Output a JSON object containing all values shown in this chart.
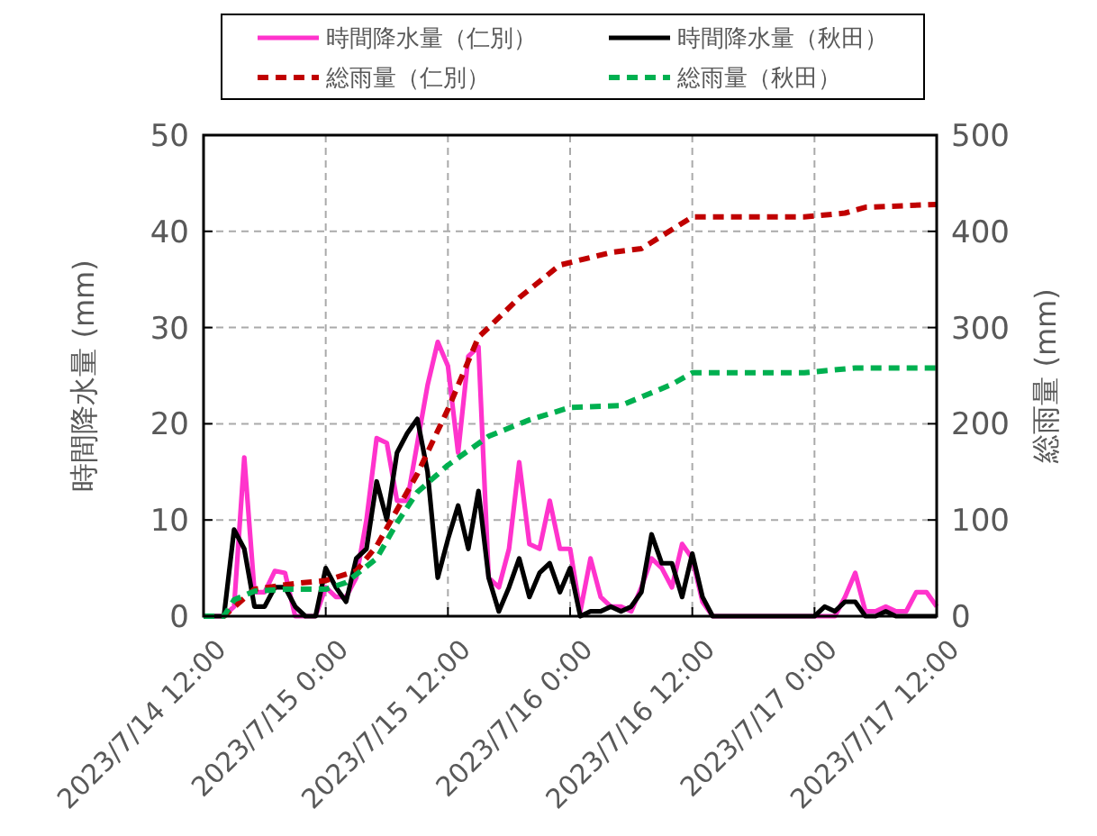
{
  "chart_data": {
    "type": "line",
    "ylabel": "時間降水量 (mm)",
    "y2label": "総雨量 (mm)",
    "x": [
      "2023-07-14T12:00",
      "2023-07-14T13:00",
      "2023-07-14T14:00",
      "2023-07-14T15:00",
      "2023-07-14T16:00",
      "2023-07-14T17:00",
      "2023-07-14T18:00",
      "2023-07-14T19:00",
      "2023-07-14T20:00",
      "2023-07-14T21:00",
      "2023-07-14T22:00",
      "2023-07-14T23:00",
      "2023-07-15T00:00",
      "2023-07-15T01:00",
      "2023-07-15T02:00",
      "2023-07-15T03:00",
      "2023-07-15T04:00",
      "2023-07-15T05:00",
      "2023-07-15T06:00",
      "2023-07-15T07:00",
      "2023-07-15T08:00",
      "2023-07-15T09:00",
      "2023-07-15T10:00",
      "2023-07-15T11:00",
      "2023-07-15T12:00",
      "2023-07-15T13:00",
      "2023-07-15T14:00",
      "2023-07-15T15:00",
      "2023-07-15T16:00",
      "2023-07-15T17:00",
      "2023-07-15T18:00",
      "2023-07-15T19:00",
      "2023-07-15T20:00",
      "2023-07-15T21:00",
      "2023-07-15T22:00",
      "2023-07-15T23:00",
      "2023-07-16T00:00",
      "2023-07-16T01:00",
      "2023-07-16T02:00",
      "2023-07-16T03:00",
      "2023-07-16T04:00",
      "2023-07-16T05:00",
      "2023-07-16T06:00",
      "2023-07-16T07:00",
      "2023-07-16T08:00",
      "2023-07-16T09:00",
      "2023-07-16T10:00",
      "2023-07-16T11:00",
      "2023-07-16T12:00",
      "2023-07-16T13:00",
      "2023-07-16T14:00",
      "2023-07-16T15:00",
      "2023-07-16T16:00",
      "2023-07-16T17:00",
      "2023-07-16T18:00",
      "2023-07-16T19:00",
      "2023-07-16T20:00",
      "2023-07-16T21:00",
      "2023-07-16T22:00",
      "2023-07-16T23:00",
      "2023-07-17T00:00",
      "2023-07-17T01:00",
      "2023-07-17T02:00",
      "2023-07-17T03:00",
      "2023-07-17T04:00",
      "2023-07-17T05:00",
      "2023-07-17T06:00",
      "2023-07-17T07:00",
      "2023-07-17T08:00",
      "2023-07-17T09:00",
      "2023-07-17T10:00",
      "2023-07-17T11:00",
      "2023-07-17T12:00"
    ],
    "series": [
      {
        "name": "時間降水量（仁別）",
        "color": "#ff33cc",
        "line_style": "solid",
        "values": [
          0,
          0,
          0,
          1,
          16.5,
          2.5,
          2.5,
          4.7,
          4.5,
          0,
          0,
          0,
          3,
          2,
          2,
          4,
          10,
          18.5,
          18,
          12,
          12,
          18,
          24,
          28.5,
          26,
          17,
          27,
          28,
          4,
          3,
          7,
          16,
          7.5,
          7,
          12,
          7,
          7,
          0.5,
          6,
          2,
          1,
          1,
          0.5,
          3,
          6,
          5,
          3,
          7.5,
          6,
          1.5,
          0,
          0,
          0,
          0,
          0,
          0,
          0,
          0,
          0,
          0,
          0,
          0,
          0,
          2,
          4.5,
          0.5,
          0.5,
          1,
          0.5,
          0.5,
          2.5,
          2.5,
          1
        ]
      },
      {
        "name": "時間降水量（秋田）",
        "color": "#000000",
        "line_style": "solid",
        "values": [
          0,
          0,
          0,
          9,
          7,
          1,
          1,
          3,
          3,
          1,
          0,
          0,
          5,
          3,
          1.5,
          6,
          7,
          14,
          10,
          17,
          19,
          20.5,
          15,
          4,
          8,
          11.5,
          7,
          13,
          4,
          0.5,
          3,
          6,
          2,
          4.5,
          5.5,
          2.5,
          5,
          0,
          0.5,
          0.5,
          1,
          0.5,
          1,
          2.5,
          8.5,
          5.5,
          5.5,
          2,
          6.5,
          2,
          0,
          0,
          0,
          0,
          0,
          0,
          0,
          0,
          0,
          0,
          0,
          1,
          0.5,
          1.5,
          1.5,
          0,
          0,
          0.5,
          0,
          0,
          0,
          0,
          0
        ]
      },
      {
        "name": "総雨量（仁別）",
        "color": "#c00000",
        "line_style": "dashed",
        "axis": "y2",
        "x": [
          "2023-07-14T12:00",
          "2023-07-14T14:00",
          "2023-07-14T17:00",
          "2023-07-14T21:00",
          "2023-07-15T00:00",
          "2023-07-15T03:00",
          "2023-07-15T05:00",
          "2023-07-15T09:00",
          "2023-07-15T12:00",
          "2023-07-15T15:00",
          "2023-07-15T16:00",
          "2023-07-15T19:00",
          "2023-07-15T23:00",
          "2023-07-16T04:00",
          "2023-07-16T07:00",
          "2023-07-16T12:00",
          "2023-07-16T23:00",
          "2023-07-17T03:00",
          "2023-07-17T05:00",
          "2023-07-17T12:00"
        ],
        "values": [
          0,
          0,
          28,
          34,
          37,
          47,
          73,
          148,
          215,
          290,
          300,
          331,
          365,
          378,
          382,
          415,
          415,
          419,
          425,
          428
        ]
      },
      {
        "name": "総雨量（秋田）",
        "color": "#00b050",
        "line_style": "dashed",
        "axis": "y2",
        "x": [
          "2023-07-14T12:00",
          "2023-07-14T14:00",
          "2023-07-14T15:00",
          "2023-07-14T17:00",
          "2023-07-14T20:00",
          "2023-07-15T00:00",
          "2023-07-15T02:00",
          "2023-07-15T05:00",
          "2023-07-15T07:00",
          "2023-07-15T09:00",
          "2023-07-15T12:00",
          "2023-07-15T16:00",
          "2023-07-15T20:00",
          "2023-07-16T00:00",
          "2023-07-16T05:00",
          "2023-07-16T10:00",
          "2023-07-16T12:00",
          "2023-07-16T23:00",
          "2023-07-17T04:00",
          "2023-07-17T12:00"
        ],
        "values": [
          0,
          0,
          17,
          26,
          28,
          28,
          35,
          60,
          97,
          129,
          157,
          187,
          204,
          217,
          219,
          241,
          253,
          253,
          258,
          258
        ]
      }
    ],
    "xlim": [
      "2023-07-14T12:00",
      "2023-07-17T12:00"
    ],
    "xticks": [
      {
        "value": "2023-07-14T12:00",
        "label": "2023/7/14 12:00"
      },
      {
        "value": "2023-07-15T00:00",
        "label": "2023/7/15 0:00"
      },
      {
        "value": "2023-07-15T12:00",
        "label": "2023/7/15 12:00"
      },
      {
        "value": "2023-07-16T00:00",
        "label": "2023/7/16 0:00"
      },
      {
        "value": "2023-07-16T12:00",
        "label": "2023/7/16 12:00"
      },
      {
        "value": "2023-07-17T00:00",
        "label": "2023/7/17 0:00"
      },
      {
        "value": "2023-07-17T12:00",
        "label": "2023/7/17 12:00"
      }
    ],
    "ylim": [
      0,
      50
    ],
    "yticks": [
      0,
      10,
      20,
      30,
      40,
      50
    ],
    "y2lim": [
      0,
      500
    ],
    "y2ticks": [
      0,
      100,
      200,
      300,
      400,
      500
    ],
    "grid": true,
    "legend": "top",
    "marker": "none"
  }
}
